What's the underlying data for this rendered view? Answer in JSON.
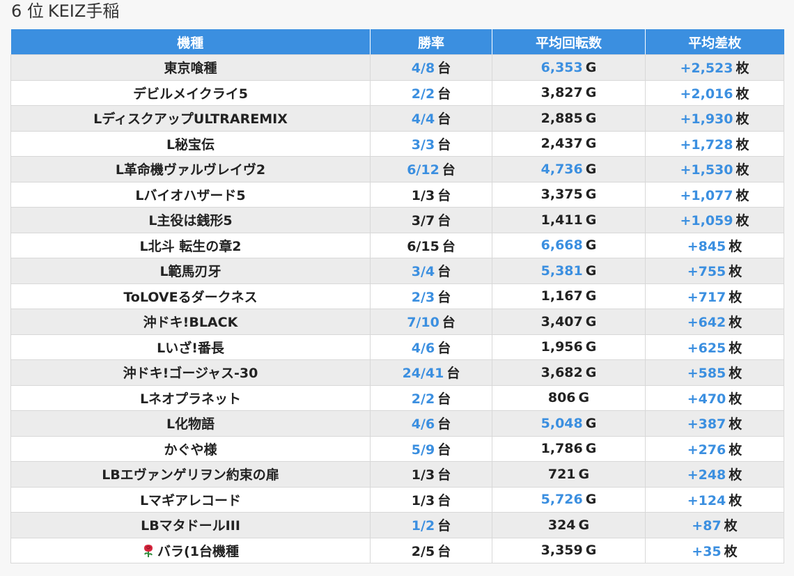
{
  "page": {
    "rank_label": "6 位",
    "store_name": "KEIZ手稲"
  },
  "colors": {
    "header_bg": "#3b8fe0",
    "highlight_blue": "#3b8fe0",
    "row_odd": "#ececec",
    "row_even": "#ffffff"
  },
  "table": {
    "headers": [
      "機種",
      "勝率",
      "平均回転数",
      "平均差枚"
    ],
    "win_unit": "台",
    "spins_unit": "G",
    "diff_unit": "枚",
    "rows": [
      {
        "model": "東京喰種",
        "win_rate": "4/8",
        "win_hl": true,
        "spins": "6,353",
        "spins_hl": true,
        "diff": "+2,523",
        "diff_hl": true,
        "icon": ""
      },
      {
        "model": "デビルメイクライ5",
        "win_rate": "2/2",
        "win_hl": true,
        "spins": "3,827",
        "spins_hl": false,
        "diff": "+2,016",
        "diff_hl": true,
        "icon": ""
      },
      {
        "model": "LディスクアップULTRAREMIX",
        "win_rate": "4/4",
        "win_hl": true,
        "spins": "2,885",
        "spins_hl": false,
        "diff": "+1,930",
        "diff_hl": true,
        "icon": ""
      },
      {
        "model": "L秘宝伝",
        "win_rate": "3/3",
        "win_hl": true,
        "spins": "2,437",
        "spins_hl": false,
        "diff": "+1,728",
        "diff_hl": true,
        "icon": ""
      },
      {
        "model": "L革命機ヴァルヴレイヴ2",
        "win_rate": "6/12",
        "win_hl": true,
        "spins": "4,736",
        "spins_hl": true,
        "diff": "+1,530",
        "diff_hl": true,
        "icon": ""
      },
      {
        "model": "Lバイオハザード5",
        "win_rate": "1/3",
        "win_hl": false,
        "spins": "3,375",
        "spins_hl": false,
        "diff": "+1,077",
        "diff_hl": true,
        "icon": ""
      },
      {
        "model": "L主役は銭形5",
        "win_rate": "3/7",
        "win_hl": false,
        "spins": "1,411",
        "spins_hl": false,
        "diff": "+1,059",
        "diff_hl": true,
        "icon": ""
      },
      {
        "model": "L北斗 転生の章2",
        "win_rate": "6/15",
        "win_hl": false,
        "spins": "6,668",
        "spins_hl": true,
        "diff": "+845",
        "diff_hl": true,
        "icon": ""
      },
      {
        "model": "L範馬刃牙",
        "win_rate": "3/4",
        "win_hl": true,
        "spins": "5,381",
        "spins_hl": true,
        "diff": "+755",
        "diff_hl": true,
        "icon": ""
      },
      {
        "model": "ToLOVEるダークネス",
        "win_rate": "2/3",
        "win_hl": true,
        "spins": "1,167",
        "spins_hl": false,
        "diff": "+717",
        "diff_hl": true,
        "icon": ""
      },
      {
        "model": "沖ドキ!BLACK",
        "win_rate": "7/10",
        "win_hl": true,
        "spins": "3,407",
        "spins_hl": false,
        "diff": "+642",
        "diff_hl": true,
        "icon": ""
      },
      {
        "model": "Lいざ!番長",
        "win_rate": "4/6",
        "win_hl": true,
        "spins": "1,956",
        "spins_hl": false,
        "diff": "+625",
        "diff_hl": true,
        "icon": ""
      },
      {
        "model": "沖ドキ!ゴージャス-30",
        "win_rate": "24/41",
        "win_hl": true,
        "spins": "3,682",
        "spins_hl": false,
        "diff": "+585",
        "diff_hl": true,
        "icon": ""
      },
      {
        "model": "Lネオプラネット",
        "win_rate": "2/2",
        "win_hl": true,
        "spins": "806",
        "spins_hl": false,
        "diff": "+470",
        "diff_hl": true,
        "icon": ""
      },
      {
        "model": "L化物語",
        "win_rate": "4/6",
        "win_hl": true,
        "spins": "5,048",
        "spins_hl": true,
        "diff": "+387",
        "diff_hl": true,
        "icon": ""
      },
      {
        "model": "かぐや様",
        "win_rate": "5/9",
        "win_hl": true,
        "spins": "1,786",
        "spins_hl": false,
        "diff": "+276",
        "diff_hl": true,
        "icon": ""
      },
      {
        "model": "LBエヴァンゲリヲン約束の扉",
        "win_rate": "1/3",
        "win_hl": false,
        "spins": "721",
        "spins_hl": false,
        "diff": "+248",
        "diff_hl": true,
        "icon": ""
      },
      {
        "model": "Lマギアレコード",
        "win_rate": "1/3",
        "win_hl": false,
        "spins": "5,726",
        "spins_hl": true,
        "diff": "+124",
        "diff_hl": true,
        "icon": ""
      },
      {
        "model": "LBマタドールIII",
        "win_rate": "1/2",
        "win_hl": true,
        "spins": "324",
        "spins_hl": false,
        "diff": "+87",
        "diff_hl": true,
        "icon": ""
      },
      {
        "model": "バラ(1台機種",
        "win_rate": "2/5",
        "win_hl": false,
        "spins": "3,359",
        "spins_hl": false,
        "diff": "+35",
        "diff_hl": true,
        "icon": "rose-icon"
      }
    ]
  }
}
